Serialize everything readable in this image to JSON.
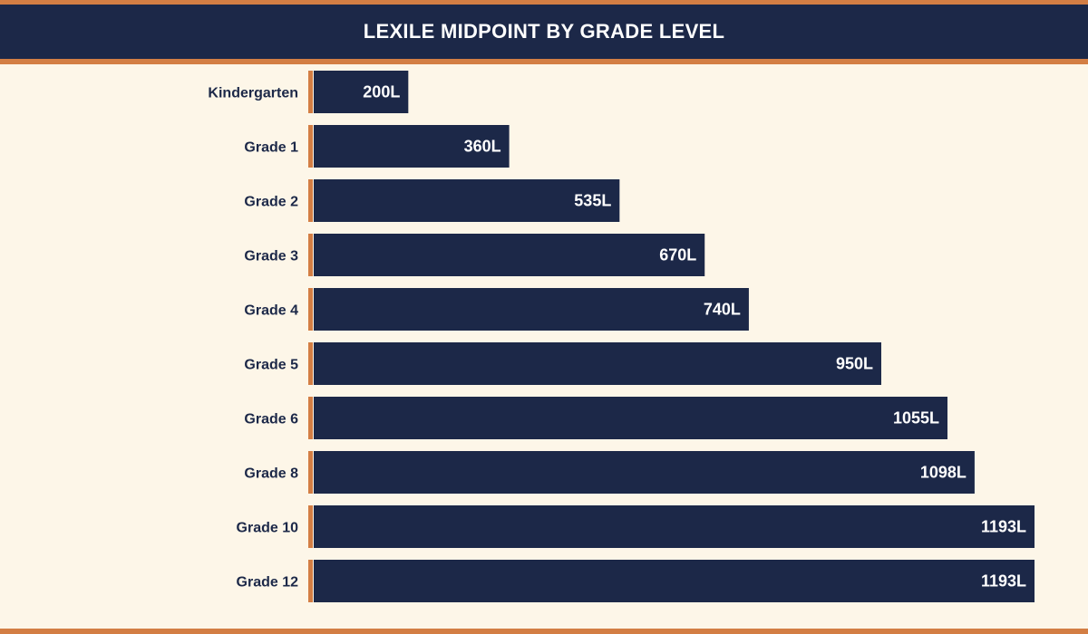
{
  "colors": {
    "navy": "#1c2848",
    "accent": "#d37e44",
    "background": "#fdf6e8",
    "label_text": "#1c2848",
    "value_text": "#ffffff"
  },
  "chart_data": {
    "type": "bar",
    "orientation": "horizontal",
    "title": "LEXILE MIDPOINT BY GRADE LEVEL",
    "categories": [
      "Kindergarten",
      "Grade 1",
      "Grade 2",
      "Grade 3",
      "Grade 4",
      "Grade 5",
      "Grade 6",
      "Grade 8",
      "Grade 10",
      "Grade 12"
    ],
    "values": [
      200,
      360,
      535,
      670,
      740,
      950,
      1055,
      1098,
      1193,
      1193
    ],
    "value_labels": [
      "200L",
      "360L",
      "535L",
      "670L",
      "740L",
      "950L",
      "1055L",
      "1098L",
      "1193L",
      "1193L"
    ],
    "value_unit": "L",
    "xlim": [
      50,
      1193
    ],
    "xlabel": "",
    "ylabel": "",
    "grid": false,
    "legend": "none"
  }
}
